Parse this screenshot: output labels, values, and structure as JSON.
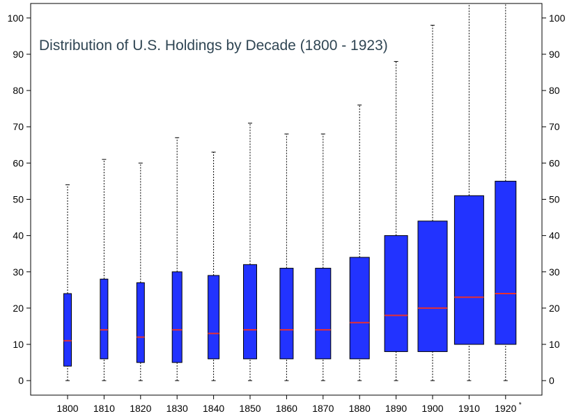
{
  "chart_data": {
    "type": "box",
    "title": "Distribution of U.S. Holdings by Decade (1800 - 1923)",
    "xlabel": "",
    "ylabel": "",
    "ylim": [
      -4,
      104
    ],
    "y_ticks": [
      0,
      10,
      20,
      30,
      40,
      50,
      60,
      70,
      80,
      90,
      100
    ],
    "grid": false,
    "box_color": "#2233ff",
    "median_color": "#e83030",
    "categories": [
      "1800",
      "1810",
      "1820",
      "1830",
      "1840",
      "1850",
      "1860",
      "1870",
      "1880",
      "1890",
      "1900",
      "1910",
      "1920"
    ],
    "category_marks": [
      "",
      "",
      "",
      "",
      "",
      "",
      "",
      "",
      "",
      "",
      "",
      "",
      "*"
    ],
    "boxes": [
      {
        "min": 0,
        "q1": 4,
        "median": 11,
        "q3": 24,
        "max": 54
      },
      {
        "min": 0,
        "q1": 6,
        "median": 14,
        "q3": 28,
        "max": 61
      },
      {
        "min": 0,
        "q1": 5,
        "median": 12,
        "q3": 27,
        "max": 60
      },
      {
        "min": 0,
        "q1": 5,
        "median": 14,
        "q3": 30,
        "max": 67
      },
      {
        "min": 0,
        "q1": 6,
        "median": 13,
        "q3": 29,
        "max": 63
      },
      {
        "min": 0,
        "q1": 6,
        "median": 14,
        "q3": 32,
        "max": 71
      },
      {
        "min": 0,
        "q1": 6,
        "median": 14,
        "q3": 31,
        "max": 68
      },
      {
        "min": 0,
        "q1": 6,
        "median": 14,
        "q3": 31,
        "max": 68
      },
      {
        "min": 0,
        "q1": 6,
        "median": 16,
        "q3": 34,
        "max": 76
      },
      {
        "min": 0,
        "q1": 8,
        "median": 18,
        "q3": 40,
        "max": 88
      },
      {
        "min": 0,
        "q1": 8,
        "median": 20,
        "q3": 44,
        "max": 98
      },
      {
        "min": 0,
        "q1": 10,
        "median": 23,
        "q3": 51,
        "max": 104
      },
      {
        "min": 0,
        "q1": 10,
        "median": 24,
        "q3": 55,
        "max": 104
      }
    ]
  }
}
